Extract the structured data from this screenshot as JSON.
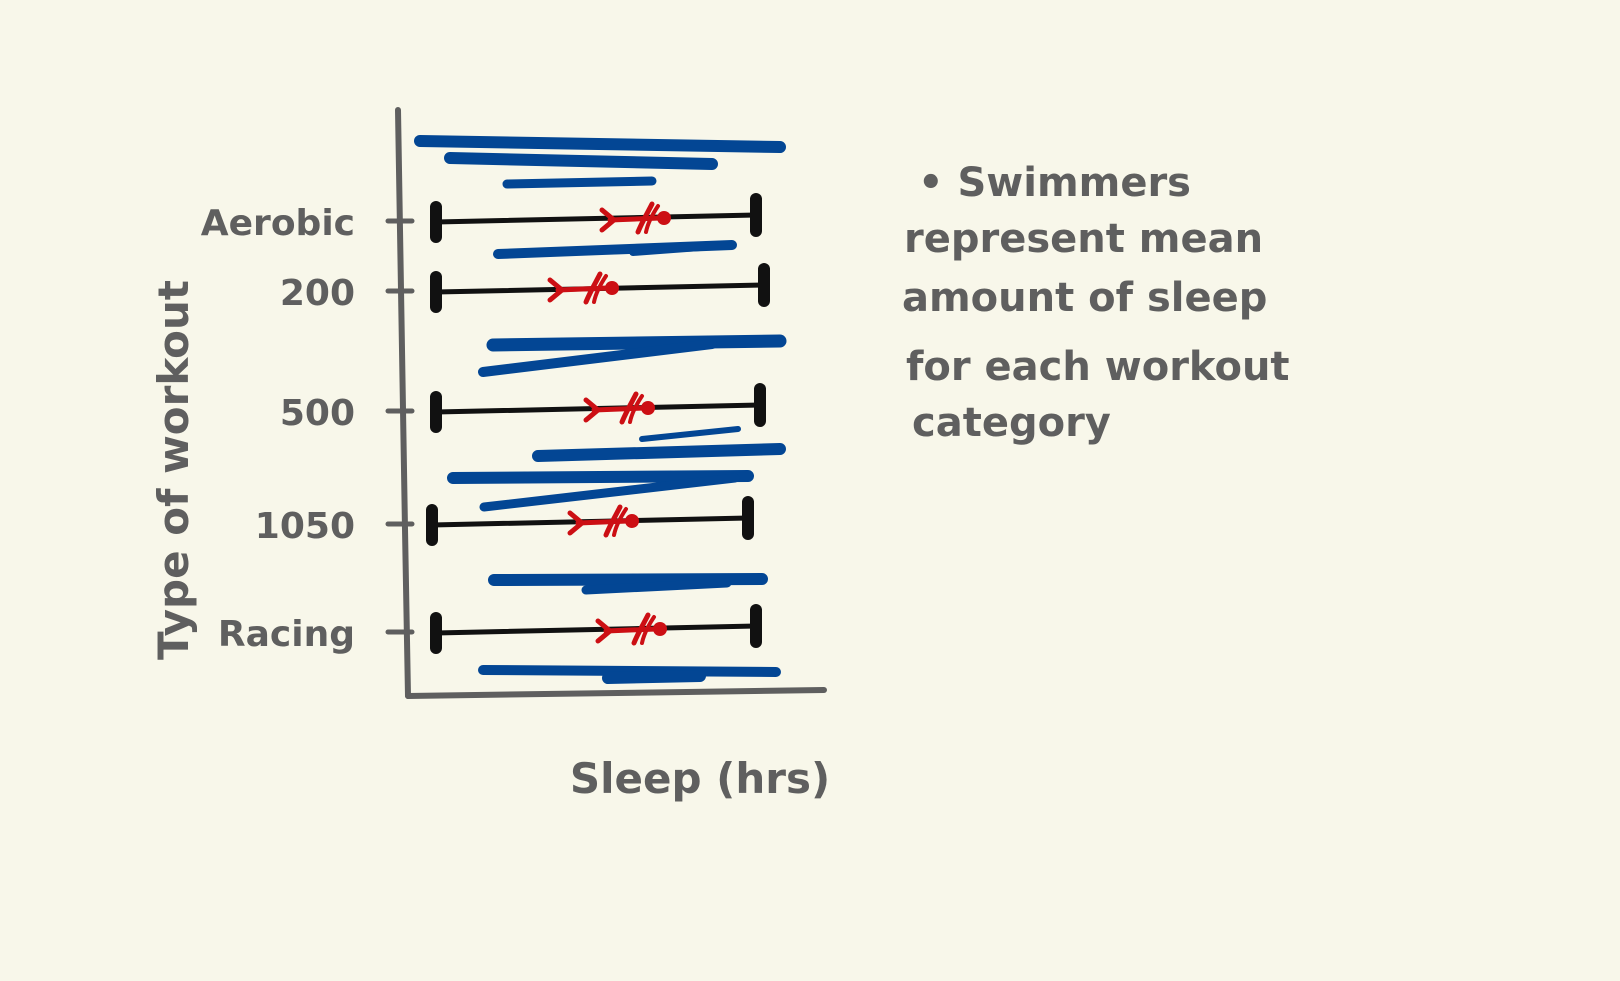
{
  "chart_data": {
    "type": "range",
    "orientation": "horizontal",
    "title": "",
    "xlabel": "Sleep (hrs)",
    "ylabel": "Type of workout",
    "x_ticks_shown": false,
    "categories": [
      "Aerobic",
      "200",
      "500",
      "1050",
      "Racing"
    ],
    "ranges": [
      {
        "category": "Aerobic",
        "min": 0.09,
        "max": 0.89,
        "mean": 0.62
      },
      {
        "category": "200",
        "min": 0.09,
        "max": 0.91,
        "mean": 0.49
      },
      {
        "category": "500",
        "min": 0.09,
        "max": 0.9,
        "mean": 0.58
      },
      {
        "category": "1050",
        "min": 0.08,
        "max": 0.87,
        "mean": 0.54
      },
      {
        "category": "Racing",
        "min": 0.09,
        "max": 0.89,
        "mean": 0.61
      }
    ],
    "annotation": "• Swimmers represent mean amount of sleep for each workout category",
    "grid": false,
    "legend": "none",
    "colors": {
      "axis": "#5f5f5f",
      "range_line": "#111111",
      "swimmer": "#cc0f14",
      "water": "#034694",
      "background": "#f8f7ea"
    }
  }
}
